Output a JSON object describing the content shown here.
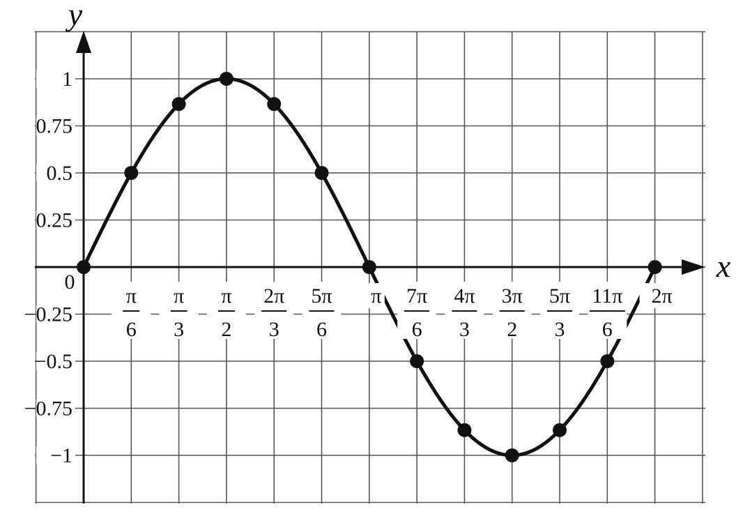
{
  "chart_data": {
    "type": "line",
    "function": "y = sin x",
    "xlabel": "x",
    "ylabel": "y",
    "origin_label": "0",
    "xlim": [
      -0.52,
      7.33
    ],
    "ylim": [
      -1.25,
      1.25
    ],
    "grid": true,
    "y_ticks": [
      {
        "value": 1,
        "label": "1"
      },
      {
        "value": 0.75,
        "label": "0.75"
      },
      {
        "value": 0.5,
        "label": "0.5"
      },
      {
        "value": 0.25,
        "label": "0.25"
      },
      {
        "value": -0.25,
        "label": "−0.25"
      },
      {
        "value": -0.5,
        "label": "−0.5"
      },
      {
        "value": -0.75,
        "label": "−0.75"
      },
      {
        "value": -1,
        "label": "−1"
      }
    ],
    "x_ticks": [
      {
        "value": 0.5236,
        "num": "π",
        "den": "6"
      },
      {
        "value": 1.0472,
        "num": "π",
        "den": "3"
      },
      {
        "value": 1.5708,
        "num": "π",
        "den": "2"
      },
      {
        "value": 2.0944,
        "num": "2π",
        "den": "3"
      },
      {
        "value": 2.618,
        "num": "5π",
        "den": "6"
      },
      {
        "value": 3.1416,
        "num": "π",
        "den": ""
      },
      {
        "value": 3.6652,
        "num": "7π",
        "den": "6"
      },
      {
        "value": 4.1888,
        "num": "4π",
        "den": "3"
      },
      {
        "value": 4.7124,
        "num": "3π",
        "den": "2"
      },
      {
        "value": 5.236,
        "num": "5π",
        "den": "3"
      },
      {
        "value": 5.7596,
        "num": "11π",
        "den": "6"
      },
      {
        "value": 6.2832,
        "num": "2π",
        "den": ""
      }
    ],
    "series": [
      {
        "name": "sin x",
        "points": [
          {
            "x": 0,
            "y": 0
          },
          {
            "x": 0.5236,
            "y": 0.5
          },
          {
            "x": 1.0472,
            "y": 0.866
          },
          {
            "x": 1.5708,
            "y": 1
          },
          {
            "x": 2.0944,
            "y": 0.866
          },
          {
            "x": 2.618,
            "y": 0.5
          },
          {
            "x": 3.1416,
            "y": 0
          },
          {
            "x": 3.6652,
            "y": -0.5
          },
          {
            "x": 4.1888,
            "y": -0.866
          },
          {
            "x": 4.7124,
            "y": -1
          },
          {
            "x": 5.236,
            "y": -0.866
          },
          {
            "x": 5.7596,
            "y": -0.5
          },
          {
            "x": 6.2832,
            "y": 0
          }
        ]
      }
    ]
  }
}
